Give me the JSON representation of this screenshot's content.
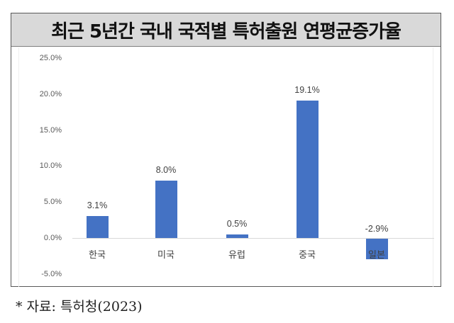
{
  "title": "최근 5년간 국내 국적별 특허출원 연평균증가율",
  "footnote": "* 자료: 특허청(2023)",
  "colors": {
    "bar": "#4472c4",
    "title_band": "#d9d9d9",
    "axis_text": "#595959"
  },
  "chart_data": {
    "type": "bar",
    "title": "최근 5년간 국내 국적별 특허출원 연평균증가율",
    "xlabel": "",
    "ylabel": "",
    "categories": [
      "한국",
      "미국",
      "유럽",
      "중국",
      "일본"
    ],
    "values": [
      3.1,
      8.0,
      0.5,
      19.1,
      -2.9
    ],
    "value_labels": [
      "3.1%",
      "8.0%",
      "0.5%",
      "19.1%",
      "-2.9%"
    ],
    "ylim": [
      -5.0,
      25.0
    ],
    "yticks": [
      "25.0%",
      "20.0%",
      "15.0%",
      "10.0%",
      "5.0%",
      "0.0%",
      "-5.0%"
    ],
    "ytick_values": [
      25,
      20,
      15,
      10,
      5,
      0,
      -5
    ],
    "grid": false,
    "legend": null,
    "source": "특허청(2023)"
  }
}
